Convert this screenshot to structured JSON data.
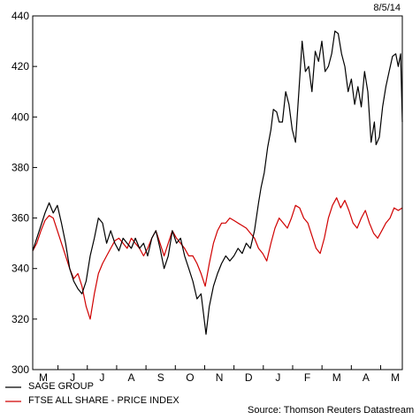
{
  "chart_data": {
    "type": "line",
    "date": "8/5/14",
    "source": "Source: Thomson Reuters Datastream",
    "ylim": [
      300,
      440
    ],
    "yticks": [
      300,
      320,
      340,
      360,
      380,
      400,
      420,
      440
    ],
    "x_tick_labels": [
      "M",
      "J",
      "J",
      "A",
      "S",
      "O",
      "N",
      "D",
      "J",
      "F",
      "M",
      "A",
      "M"
    ],
    "series": [
      {
        "name": "SAGE GROUP",
        "color": "#000000",
        "points": [
          [
            0,
            347
          ],
          [
            5,
            352
          ],
          [
            10,
            357
          ],
          [
            15,
            362
          ],
          [
            20,
            366
          ],
          [
            25,
            362
          ],
          [
            30,
            365
          ],
          [
            35,
            358
          ],
          [
            40,
            350
          ],
          [
            45,
            340
          ],
          [
            50,
            335
          ],
          [
            55,
            332
          ],
          [
            60,
            330
          ],
          [
            65,
            335
          ],
          [
            70,
            345
          ],
          [
            75,
            352
          ],
          [
            80,
            360
          ],
          [
            85,
            358
          ],
          [
            90,
            350
          ],
          [
            95,
            355
          ],
          [
            100,
            350
          ],
          [
            105,
            347
          ],
          [
            110,
            352
          ],
          [
            115,
            350
          ],
          [
            120,
            348
          ],
          [
            125,
            352
          ],
          [
            130,
            348
          ],
          [
            135,
            350
          ],
          [
            140,
            345
          ],
          [
            145,
            352
          ],
          [
            150,
            355
          ],
          [
            155,
            348
          ],
          [
            160,
            340
          ],
          [
            165,
            345
          ],
          [
            170,
            355
          ],
          [
            175,
            350
          ],
          [
            180,
            352
          ],
          [
            185,
            345
          ],
          [
            190,
            340
          ],
          [
            195,
            335
          ],
          [
            200,
            328
          ],
          [
            205,
            330
          ],
          [
            208,
            322
          ],
          [
            211,
            314
          ],
          [
            215,
            325
          ],
          [
            220,
            333
          ],
          [
            225,
            338
          ],
          [
            230,
            342
          ],
          [
            235,
            345
          ],
          [
            240,
            343
          ],
          [
            245,
            345
          ],
          [
            250,
            348
          ],
          [
            255,
            346
          ],
          [
            260,
            350
          ],
          [
            265,
            348
          ],
          [
            270,
            355
          ],
          [
            275,
            366
          ],
          [
            278,
            372
          ],
          [
            282,
            378
          ],
          [
            286,
            388
          ],
          [
            290,
            395
          ],
          [
            293,
            403
          ],
          [
            297,
            402
          ],
          [
            300,
            398
          ],
          [
            304,
            398
          ],
          [
            308,
            410
          ],
          [
            312,
            405
          ],
          [
            316,
            395
          ],
          [
            320,
            390
          ],
          [
            324,
            410
          ],
          [
            328,
            430
          ],
          [
            332,
            418
          ],
          [
            336,
            420
          ],
          [
            340,
            410
          ],
          [
            344,
            426
          ],
          [
            348,
            422
          ],
          [
            352,
            430
          ],
          [
            356,
            418
          ],
          [
            360,
            420
          ],
          [
            364,
            425
          ],
          [
            368,
            434
          ],
          [
            372,
            433
          ],
          [
            376,
            425
          ],
          [
            380,
            420
          ],
          [
            384,
            410
          ],
          [
            388,
            415
          ],
          [
            392,
            405
          ],
          [
            396,
            412
          ],
          [
            400,
            404
          ],
          [
            404,
            418
          ],
          [
            408,
            410
          ],
          [
            412,
            390
          ],
          [
            416,
            398
          ],
          [
            418,
            389
          ],
          [
            422,
            392
          ],
          [
            426,
            404
          ],
          [
            430,
            412
          ],
          [
            434,
            418
          ],
          [
            438,
            424
          ],
          [
            442,
            425
          ],
          [
            445,
            420
          ],
          [
            448,
            425
          ],
          [
            450,
            398
          ]
        ]
      },
      {
        "name": "FTSE ALL SHARE - PRICE INDEX",
        "color": "#d00000",
        "points": [
          [
            0,
            347
          ],
          [
            5,
            350
          ],
          [
            10,
            355
          ],
          [
            15,
            359
          ],
          [
            20,
            361
          ],
          [
            25,
            360
          ],
          [
            30,
            355
          ],
          [
            35,
            350
          ],
          [
            40,
            345
          ],
          [
            45,
            340
          ],
          [
            50,
            336
          ],
          [
            55,
            338
          ],
          [
            60,
            333
          ],
          [
            65,
            325
          ],
          [
            70,
            320
          ],
          [
            75,
            330
          ],
          [
            80,
            338
          ],
          [
            85,
            342
          ],
          [
            90,
            345
          ],
          [
            95,
            348
          ],
          [
            100,
            351
          ],
          [
            105,
            352
          ],
          [
            110,
            350
          ],
          [
            115,
            348
          ],
          [
            120,
            352
          ],
          [
            125,
            350
          ],
          [
            130,
            348
          ],
          [
            135,
            345
          ],
          [
            140,
            348
          ],
          [
            145,
            352
          ],
          [
            150,
            355
          ],
          [
            155,
            350
          ],
          [
            160,
            345
          ],
          [
            165,
            350
          ],
          [
            170,
            355
          ],
          [
            175,
            352
          ],
          [
            180,
            350
          ],
          [
            185,
            348
          ],
          [
            190,
            345
          ],
          [
            195,
            345
          ],
          [
            200,
            342
          ],
          [
            205,
            338
          ],
          [
            210,
            333
          ],
          [
            215,
            342
          ],
          [
            220,
            350
          ],
          [
            225,
            355
          ],
          [
            230,
            358
          ],
          [
            235,
            358
          ],
          [
            240,
            360
          ],
          [
            245,
            359
          ],
          [
            250,
            358
          ],
          [
            255,
            357
          ],
          [
            260,
            356
          ],
          [
            265,
            354
          ],
          [
            270,
            352
          ],
          [
            275,
            348
          ],
          [
            280,
            346
          ],
          [
            285,
            343
          ],
          [
            290,
            350
          ],
          [
            295,
            356
          ],
          [
            300,
            360
          ],
          [
            305,
            358
          ],
          [
            310,
            356
          ],
          [
            315,
            360
          ],
          [
            320,
            365
          ],
          [
            325,
            364
          ],
          [
            330,
            360
          ],
          [
            335,
            358
          ],
          [
            340,
            353
          ],
          [
            345,
            348
          ],
          [
            350,
            346
          ],
          [
            355,
            352
          ],
          [
            360,
            360
          ],
          [
            365,
            365
          ],
          [
            370,
            368
          ],
          [
            375,
            364
          ],
          [
            380,
            367
          ],
          [
            385,
            363
          ],
          [
            390,
            358
          ],
          [
            395,
            356
          ],
          [
            400,
            360
          ],
          [
            405,
            363
          ],
          [
            410,
            358
          ],
          [
            415,
            354
          ],
          [
            420,
            352
          ],
          [
            425,
            355
          ],
          [
            430,
            358
          ],
          [
            435,
            360
          ],
          [
            440,
            364
          ],
          [
            445,
            363
          ],
          [
            450,
            364
          ]
        ]
      }
    ]
  }
}
